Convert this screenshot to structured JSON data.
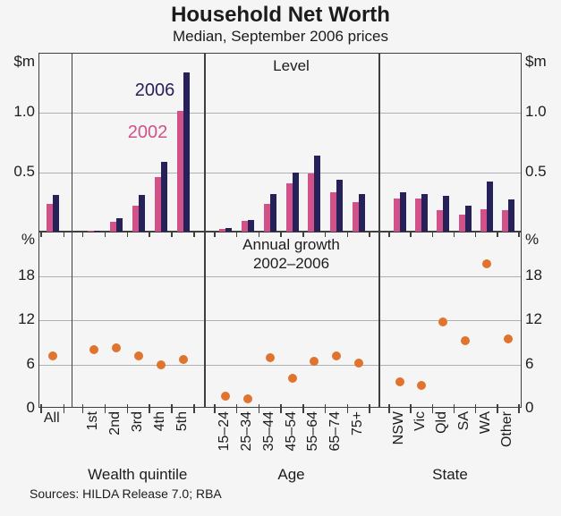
{
  "header": {
    "title": "Household Net Worth",
    "subtitle": "Median, September 2006 prices"
  },
  "legend": {
    "items": [
      {
        "label": "2006",
        "color": "#27215a"
      },
      {
        "label": "2002",
        "color": "#d05289"
      }
    ]
  },
  "footer": {
    "sources": "Sources: HILDA Release 7.0; RBA"
  },
  "colors": {
    "series_2002_pink": "#d05289",
    "series_2006_navy": "#27215a",
    "growth_dot_orange": "#e0742f",
    "axis_line": "#3f3f3f",
    "gridline": "#b1b1b4",
    "background": "#f5f5f6"
  },
  "categories": {
    "groups": [
      {
        "title": "",
        "labels": [
          "All"
        ],
        "rotated": false
      },
      {
        "title": "Wealth quintile",
        "labels": [
          "1st",
          "2nd",
          "3rd",
          "4th",
          "5th"
        ],
        "rotated": true
      },
      {
        "title": "Age",
        "labels": [
          "15–24",
          "25–34",
          "35–44",
          "45–54",
          "55–64",
          "65–74",
          "75+"
        ],
        "rotated": true
      },
      {
        "title": "State",
        "labels": [
          "NSW",
          "Vic",
          "Qld",
          "SA",
          "WA",
          "Other"
        ],
        "rotated": true
      }
    ]
  },
  "chart_data": [
    {
      "id": "level",
      "type": "bar",
      "panel_title": "Level",
      "unit": "$m",
      "ylim": [
        0,
        1.5
      ],
      "gridlines": [
        0.5,
        1.0
      ],
      "axis_tick_labels": [
        {
          "value": 1.0,
          "label": "1.0"
        },
        {
          "value": 0.5,
          "label": "0.5"
        }
      ],
      "categories_flat": [
        "All",
        "1st",
        "2nd",
        "3rd",
        "4th",
        "5th",
        "15–24",
        "25–34",
        "35–44",
        "45–54",
        "55–64",
        "65–74",
        "75+",
        "NSW",
        "Vic",
        "Qld",
        "SA",
        "WA",
        "Other"
      ],
      "series": [
        {
          "name": "2002",
          "color": "#d05289",
          "values": [
            0.23,
            0.01,
            0.08,
            0.22,
            0.46,
            1.02,
            0.02,
            0.09,
            0.23,
            0.41,
            0.49,
            0.33,
            0.25,
            0.28,
            0.28,
            0.18,
            0.14,
            0.19,
            0.18
          ]
        },
        {
          "name": "2006",
          "color": "#27215a",
          "values": [
            0.31,
            0.01,
            0.11,
            0.31,
            0.59,
            1.34,
            0.03,
            0.1,
            0.32,
            0.5,
            0.64,
            0.44,
            0.32,
            0.33,
            0.32,
            0.3,
            0.22,
            0.42,
            0.27
          ]
        }
      ]
    },
    {
      "id": "growth",
      "type": "scatter",
      "panel_title": "Annual growth",
      "panel_subtitle": "2002–2006",
      "unit": "%",
      "ylim": [
        0,
        24
      ],
      "gridlines": [
        6,
        12,
        18
      ],
      "axis_tick_labels": [
        {
          "value": 18,
          "label": "18"
        },
        {
          "value": 12,
          "label": "12"
        },
        {
          "value": 6,
          "label": "6"
        },
        {
          "value": 0,
          "label": "0"
        }
      ],
      "series": [
        {
          "name": "Annual growth 2002–2006",
          "color": "#e0742f",
          "values": [
            7.2,
            8.0,
            8.2,
            7.1,
            5.9,
            6.7,
            1.7,
            1.3,
            6.9,
            4.1,
            6.4,
            7.1,
            6.2,
            3.6,
            3.2,
            11.8,
            9.2,
            19.6,
            9.5
          ]
        }
      ]
    }
  ]
}
